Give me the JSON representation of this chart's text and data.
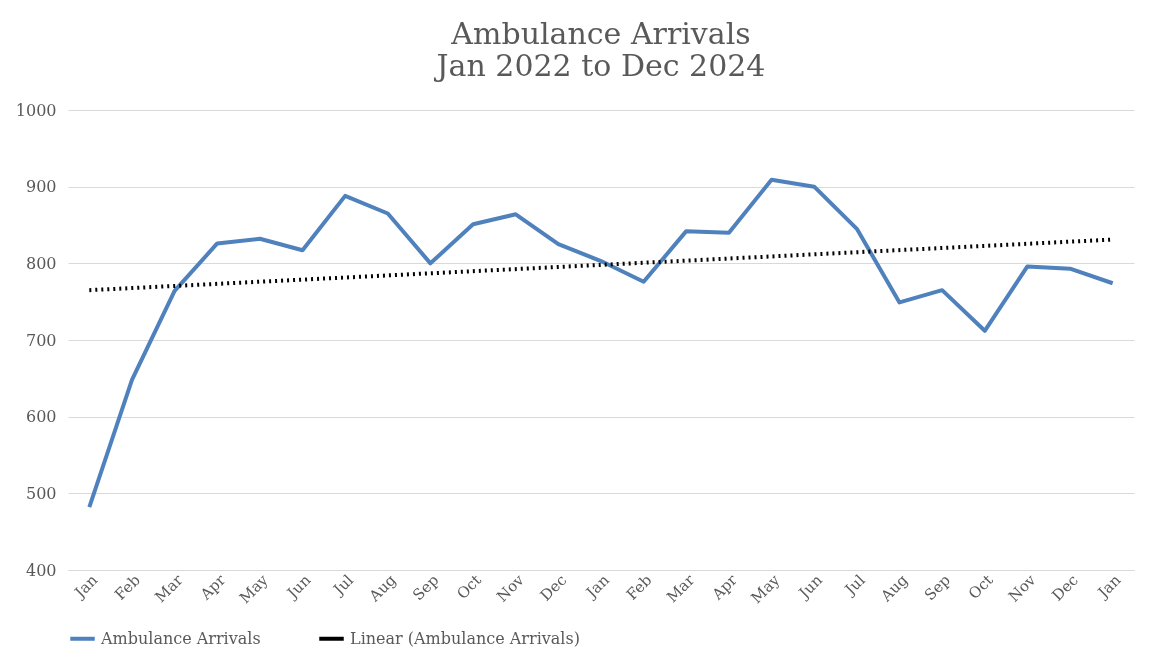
{
  "chart_data": {
    "type": "line",
    "title": "Ambulance Arrivals",
    "subtitle": "Jan 2022 to Dec 2024",
    "categories": [
      "Jan",
      "Feb",
      "Mar",
      "Apr",
      "May",
      "Jun",
      "Jul",
      "Aug",
      "Sep",
      "Oct",
      "Nov",
      "Dec",
      "Jan",
      "Feb",
      "Mar",
      "Apr",
      "May",
      "Jun",
      "Jul",
      "Aug",
      "Sep",
      "Oct",
      "Nov",
      "Dec",
      "Jan"
    ],
    "series": [
      {
        "name": "Ambulance Arrivals",
        "color": "#4f81bd",
        "line_style": "solid",
        "values": [
          482,
          648,
          764,
          826,
          832,
          817,
          888,
          865,
          800,
          851,
          864,
          825,
          803,
          776,
          842,
          840,
          909,
          900,
          845,
          749,
          765,
          712,
          796,
          793,
          774
        ]
      },
      {
        "name": "Linear (Ambulance Arrivals)",
        "color": "#000000",
        "line_style": "dotted",
        "values": [
          765,
          null,
          null,
          null,
          null,
          null,
          null,
          null,
          null,
          null,
          null,
          null,
          null,
          null,
          null,
          null,
          null,
          null,
          null,
          null,
          null,
          null,
          null,
          null,
          831
        ]
      }
    ],
    "ylim": [
      400,
      1000
    ],
    "yticks": [
      400,
      500,
      600,
      700,
      800,
      900,
      1000
    ],
    "grid": "y",
    "legend": "bottom",
    "marker": "none"
  }
}
